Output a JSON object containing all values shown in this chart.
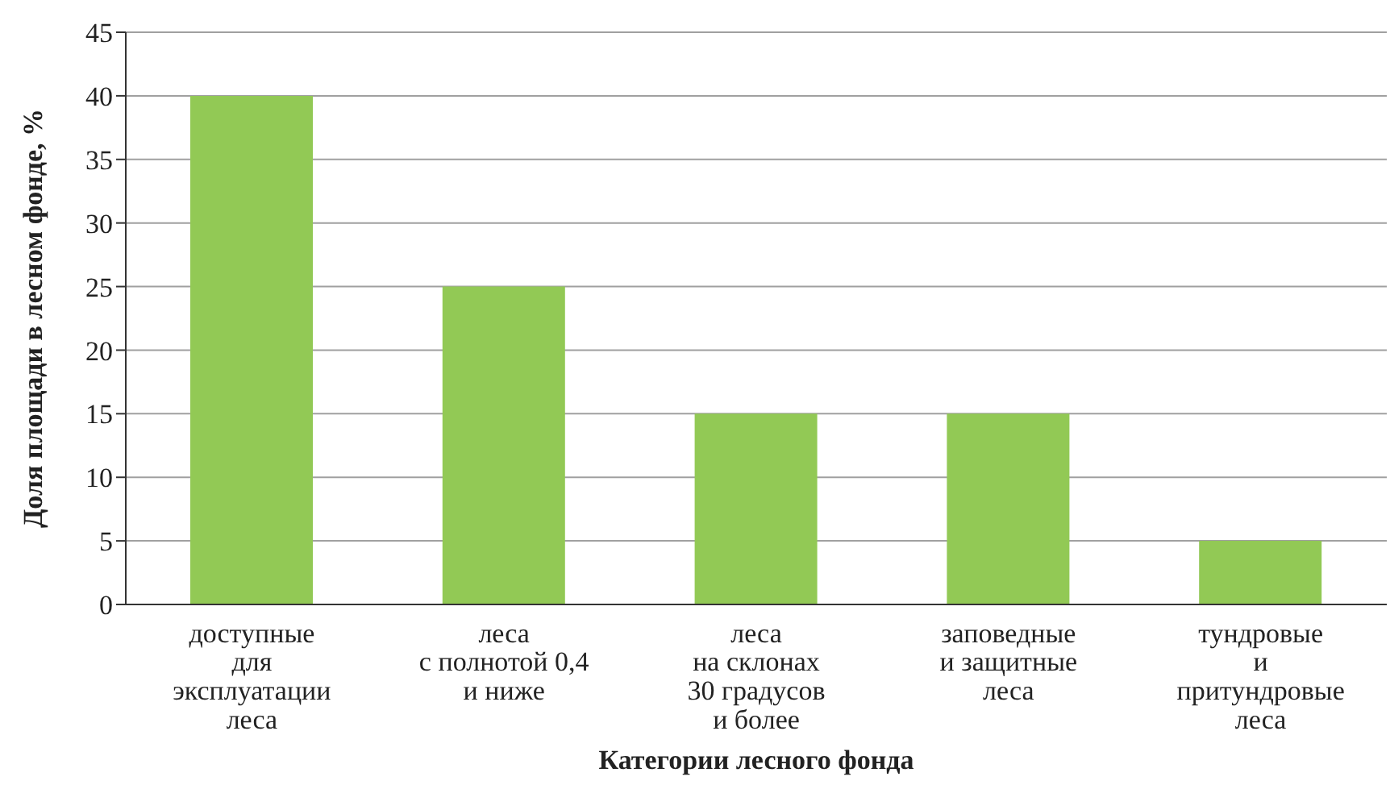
{
  "chart_data": {
    "type": "bar",
    "xlabel": "Категории лесного фонда",
    "ylabel": "Доля площади в лесном фонде, %",
    "categories": [
      "доступные\nдля\nэксплуатации\nлеса",
      "леса\nс полнотой 0,4\nи ниже",
      "леса\nна склонах\n30 градусов\nи более",
      "заповедные\nи защитные\nлеса",
      "тундровые\nи\nпритундровые\nлеса"
    ],
    "values": [
      40,
      25,
      15,
      15,
      5
    ],
    "color": "#92c955",
    "ylim": [
      0,
      45
    ],
    "yticks": [
      0,
      5,
      10,
      15,
      20,
      25,
      30,
      35,
      40,
      45
    ],
    "grid": "y"
  }
}
